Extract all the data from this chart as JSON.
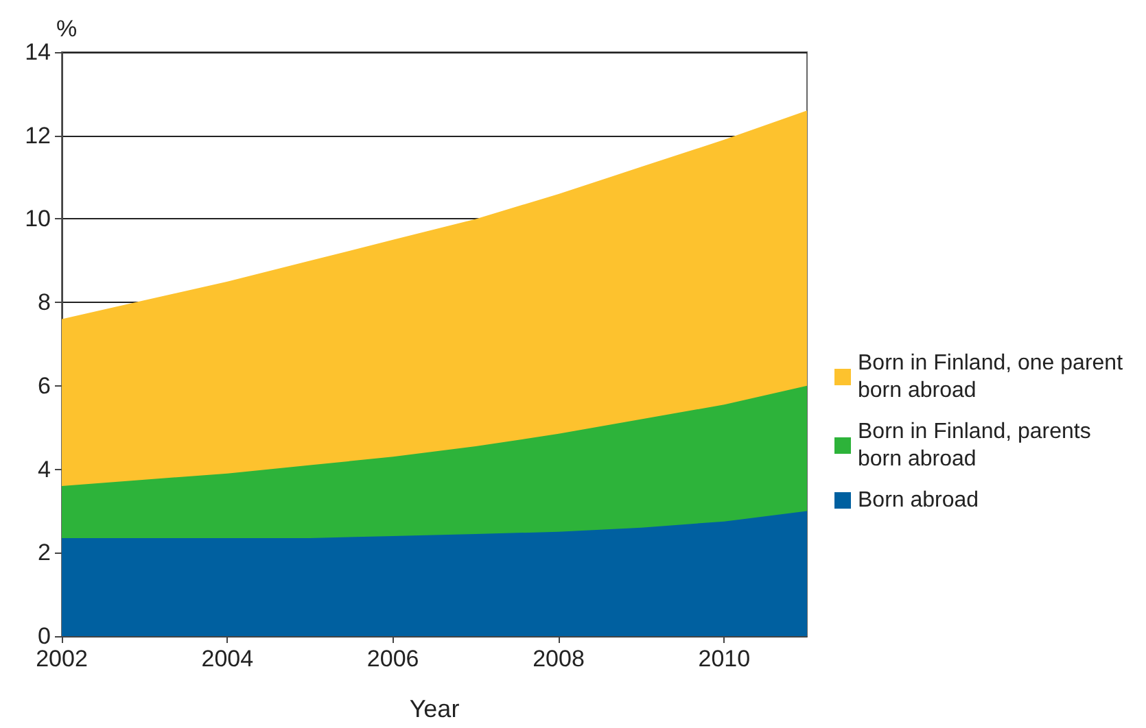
{
  "chart_data": {
    "type": "area",
    "stacked": true,
    "xlabel": "Year",
    "ylabel": "%",
    "x": [
      2002,
      2003,
      2004,
      2005,
      2006,
      2007,
      2008,
      2009,
      2010,
      2011
    ],
    "series": [
      {
        "name": "Born abroad",
        "color": "#0060a0",
        "values": [
          2.35,
          2.35,
          2.35,
          2.35,
          2.4,
          2.45,
          2.5,
          2.6,
          2.75,
          3.0
        ]
      },
      {
        "name": "Born in Finland, parents born abroad",
        "color": "#2db33a",
        "values": [
          1.25,
          1.4,
          1.55,
          1.75,
          1.9,
          2.1,
          2.35,
          2.6,
          2.8,
          3.0
        ]
      },
      {
        "name": "Born in Finland, one parent born abroad",
        "color": "#fdc22e",
        "values": [
          4.0,
          4.3,
          4.6,
          4.9,
          5.2,
          5.45,
          5.75,
          6.05,
          6.35,
          6.6
        ]
      }
    ],
    "xlim": [
      2002,
      2011
    ],
    "xticks": [
      2002,
      2004,
      2006,
      2008,
      2010
    ],
    "ylim": [
      0,
      14
    ],
    "yticks": [
      0,
      2,
      4,
      6,
      8,
      10,
      12,
      14
    ],
    "grid": "y",
    "legend": "right",
    "marker": "none"
  }
}
